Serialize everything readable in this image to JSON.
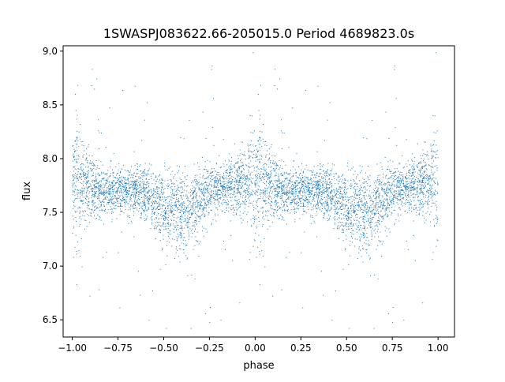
{
  "chart_data": {
    "type": "scatter",
    "title": "1SWASPJ083622.66-205015.0 Period 4689823.0s",
    "xlabel": "phase",
    "ylabel": "flux",
    "xlim": [
      -1.05,
      1.09
    ],
    "ylim": [
      6.34,
      9.05
    ],
    "grid": false,
    "legend": "none",
    "marker_color": "#1f77b4",
    "x_ticks": [
      {
        "value": -1.0,
        "label": "−1.00"
      },
      {
        "value": -0.75,
        "label": "−0.75"
      },
      {
        "value": -0.5,
        "label": "−0.50"
      },
      {
        "value": -0.25,
        "label": "−0.25"
      },
      {
        "value": 0.0,
        "label": "0.00"
      },
      {
        "value": 0.25,
        "label": "0.25"
      },
      {
        "value": 0.5,
        "label": "0.50"
      },
      {
        "value": 0.75,
        "label": "0.75"
      },
      {
        "value": 1.0,
        "label": "1.00"
      }
    ],
    "y_ticks": [
      {
        "value": 6.5,
        "label": "6.5"
      },
      {
        "value": 7.0,
        "label": "7.0"
      },
      {
        "value": 7.5,
        "label": "7.5"
      },
      {
        "value": 8.0,
        "label": "8.0"
      },
      {
        "value": 8.5,
        "label": "8.5"
      },
      {
        "value": 9.0,
        "label": "9.0"
      }
    ],
    "points_per_half": 3000,
    "phase_profile": [
      {
        "phase": 0.0,
        "median": 7.72,
        "spread": 0.3
      },
      {
        "phase": 0.02,
        "median": 7.85,
        "spread": 0.45
      },
      {
        "phase": 0.05,
        "median": 7.75,
        "spread": 0.28
      },
      {
        "phase": 0.1,
        "median": 7.72,
        "spread": 0.2
      },
      {
        "phase": 0.15,
        "median": 7.7,
        "spread": 0.16
      },
      {
        "phase": 0.2,
        "median": 7.69,
        "spread": 0.15
      },
      {
        "phase": 0.25,
        "median": 7.68,
        "spread": 0.15
      },
      {
        "phase": 0.3,
        "median": 7.68,
        "spread": 0.15
      },
      {
        "phase": 0.35,
        "median": 7.7,
        "spread": 0.15
      },
      {
        "phase": 0.4,
        "median": 7.66,
        "spread": 0.16
      },
      {
        "phase": 0.45,
        "median": 7.6,
        "spread": 0.18
      },
      {
        "phase": 0.5,
        "median": 7.55,
        "spread": 0.22
      },
      {
        "phase": 0.55,
        "median": 7.52,
        "spread": 0.25
      },
      {
        "phase": 0.6,
        "median": 7.5,
        "spread": 0.26
      },
      {
        "phase": 0.65,
        "median": 7.55,
        "spread": 0.24
      },
      {
        "phase": 0.7,
        "median": 7.62,
        "spread": 0.2
      },
      {
        "phase": 0.75,
        "median": 7.7,
        "spread": 0.17
      },
      {
        "phase": 0.8,
        "median": 7.72,
        "spread": 0.16
      },
      {
        "phase": 0.85,
        "median": 7.74,
        "spread": 0.16
      },
      {
        "phase": 0.9,
        "median": 7.76,
        "spread": 0.18
      },
      {
        "phase": 0.95,
        "median": 7.8,
        "spread": 0.22
      },
      {
        "phase": 0.98,
        "median": 7.85,
        "spread": 0.4
      },
      {
        "phase": 1.0,
        "median": 7.72,
        "spread": 0.3
      }
    ]
  }
}
